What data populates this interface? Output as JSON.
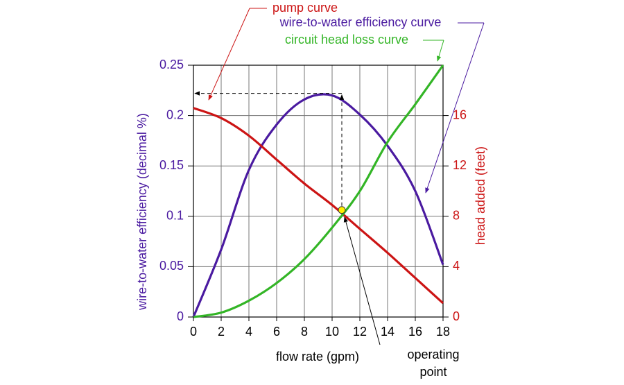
{
  "chart_data": {
    "type": "line",
    "xlabel": "flow rate (gpm)",
    "ylabel": "wire-to-water efficiency (decimal %)",
    "y2label": "head added (feet)",
    "x": [
      0,
      2,
      4,
      6,
      8,
      10,
      12,
      14,
      16,
      18
    ],
    "series": [
      {
        "name": "wire-to-water efficiency curve",
        "color": "#4a1aa0",
        "axis": "y",
        "values": [
          0,
          0.067,
          0.146,
          0.191,
          0.216,
          0.22,
          0.201,
          0.17,
          0.125,
          0.052
        ]
      },
      {
        "name": "pump curve",
        "color": "#cc1414",
        "axis": "y2",
        "values": [
          16.6,
          15.8,
          14.4,
          12.5,
          10.6,
          8.9,
          7.0,
          5.1,
          3.1,
          1.1
        ]
      },
      {
        "name": "circuit head loss curve",
        "color": "#33b526",
        "axis": "y2",
        "values": [
          0,
          0.35,
          1.3,
          2.7,
          4.6,
          7.1,
          10.0,
          13.9,
          16.9,
          20
        ]
      }
    ],
    "operating_point": {
      "label": [
        "operating",
        "point"
      ],
      "x": 10.7,
      "y2": 8.5,
      "efficiency": 0.222
    },
    "xlim": [
      0,
      18
    ],
    "xticks": [
      0,
      2,
      4,
      6,
      8,
      10,
      12,
      14,
      16,
      18
    ],
    "ylim": [
      0,
      0.25
    ],
    "yticks": [
      0,
      0.05,
      0.1,
      0.15,
      0.2,
      0.25
    ],
    "y2lim": [
      0,
      20
    ],
    "y2ticks": [
      0,
      4,
      8,
      12,
      16
    ],
    "grid": true
  }
}
